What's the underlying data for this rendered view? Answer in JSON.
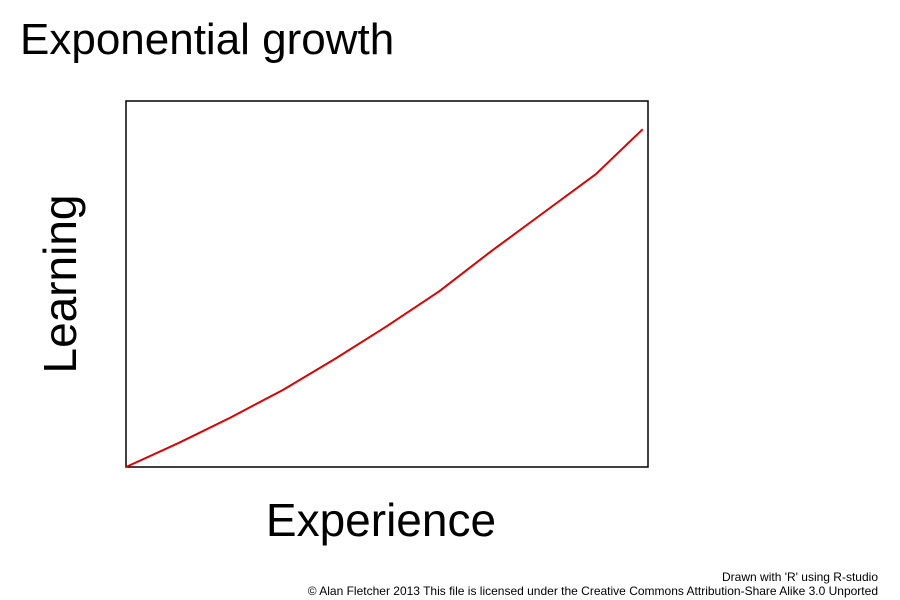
{
  "chart_data": {
    "type": "line",
    "title": "Exponential growth",
    "x_label": "Experience",
    "y_label": "Learning",
    "x": [
      0,
      10,
      20,
      30,
      40,
      50,
      60,
      70,
      80,
      90,
      99
    ],
    "values": [
      0,
      6.5,
      13.5,
      21,
      29.5,
      38.5,
      48,
      59,
      69.5,
      80,
      92.3
    ],
    "color": "#e00000",
    "xlim": [
      0,
      100
    ],
    "ylim": [
      0,
      100
    ],
    "notes": [
      "Drawn with 'R' using R-studio",
      "© Alan Fletcher 2013 This file is licensed under the Creative Commons Attribution-Share Alike 3.0 Unported"
    ]
  }
}
